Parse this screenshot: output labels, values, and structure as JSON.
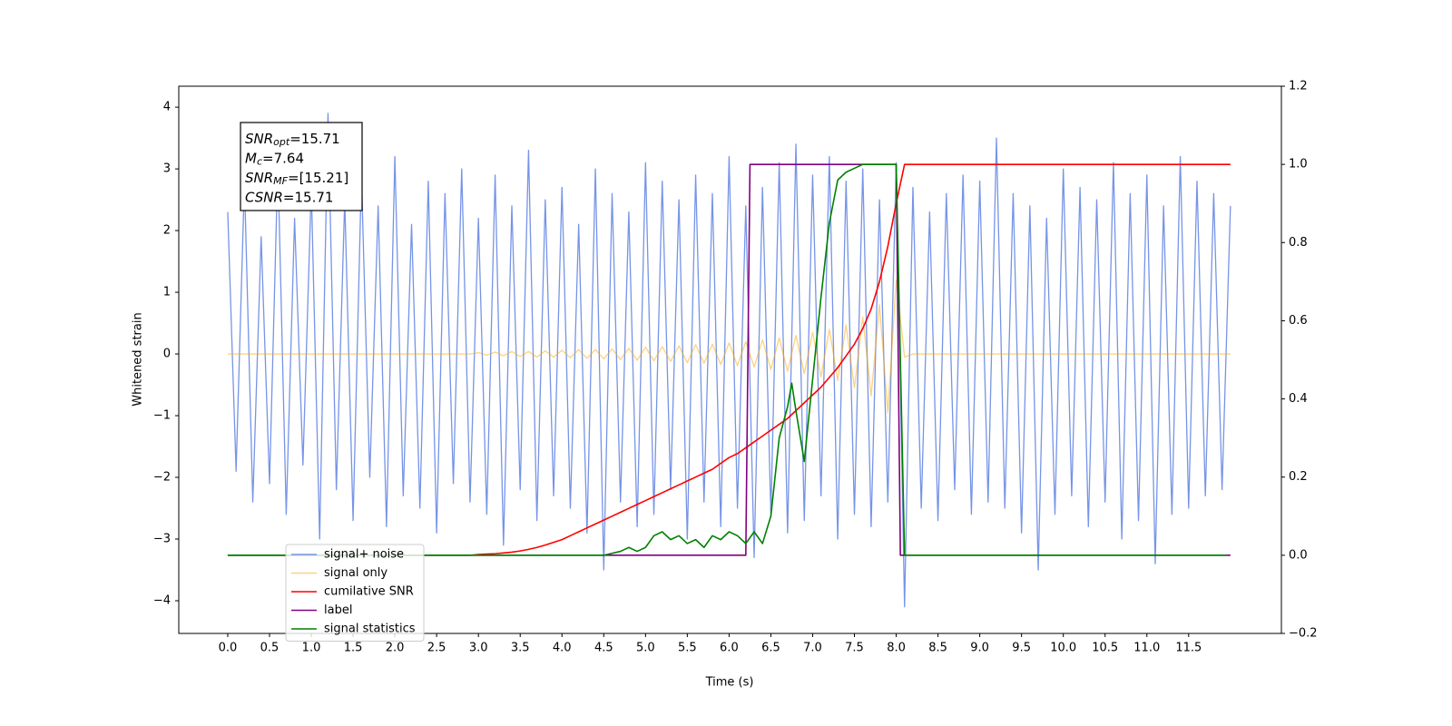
{
  "chart_data": {
    "type": "line",
    "xlabel": "Time (s)",
    "ylabel": "Whitened strain",
    "xlim": [
      -0.586,
      12.61
    ],
    "ylim": [
      -4.53,
      4.34
    ],
    "y2lim": [
      -0.2,
      1.2
    ],
    "xticks": [
      {
        "value": 0,
        "label": "0.0"
      },
      0.5,
      {
        "value": 1,
        "label": "1.0"
      },
      1.5,
      {
        "value": 2,
        "label": "2.0"
      },
      2.5,
      {
        "value": 3,
        "label": "3.0"
      },
      3.5,
      {
        "value": 4,
        "label": "4.0"
      },
      4.5,
      {
        "value": 5,
        "label": "5.0"
      },
      5.5,
      {
        "value": 6,
        "label": "6.0"
      },
      6.5,
      {
        "value": 7,
        "label": "7.0"
      },
      7.5,
      {
        "value": 8,
        "label": "8.0"
      },
      8.5,
      {
        "value": 9,
        "label": "9.0"
      },
      9.5,
      {
        "value": 10,
        "label": "10.0"
      },
      10.5,
      {
        "value": 11,
        "label": "11.0"
      },
      11.5
    ],
    "yticks": [
      {
        "value": -4,
        "label": "−4"
      },
      {
        "value": -3,
        "label": "−3"
      },
      {
        "value": -2,
        "label": "−2"
      },
      {
        "value": -1,
        "label": "−1"
      },
      0,
      1,
      2,
      3,
      4
    ],
    "y2ticks": [
      {
        "value": -0.2,
        "label": "−0.2"
      },
      {
        "value": 0,
        "label": "0.0"
      },
      0.2,
      0.4,
      0.6,
      0.8,
      {
        "value": 1,
        "label": "1.0"
      },
      1.2
    ],
    "legend": "lower left",
    "annotation": [
      {
        "symbol": "SNR",
        "subscript": "opt",
        "text": "=15.71"
      },
      {
        "symbol": "M",
        "subscript": "c",
        "text": "=7.64"
      },
      {
        "symbol": "SNR",
        "subscript": "MF",
        "text": "=[15.21]"
      },
      {
        "symbol": "CSNR",
        "text": "=15.71"
      }
    ],
    "x": [
      0,
      0.1,
      0.2,
      0.3,
      0.4,
      0.5,
      0.6,
      0.7,
      0.8,
      0.9,
      1,
      1.1,
      1.2,
      1.3,
      1.4,
      1.5,
      1.6,
      1.7,
      1.8,
      1.9,
      2,
      2.1,
      2.2,
      2.3,
      2.4,
      2.5,
      2.6,
      2.7,
      2.8,
      2.9,
      3,
      3.1,
      3.2,
      3.3,
      3.4,
      3.5,
      3.6,
      3.7,
      3.8,
      3.9,
      4,
      4.1,
      4.2,
      4.3,
      4.4,
      4.5,
      4.6,
      4.7,
      4.8,
      4.9,
      5,
      5.1,
      5.2,
      5.3,
      5.4,
      5.5,
      5.6,
      5.7,
      5.8,
      5.9,
      6,
      6.1,
      6.2,
      6.3,
      6.4,
      6.5,
      6.6,
      6.7,
      6.8,
      6.9,
      7,
      7.1,
      7.2,
      7.3,
      7.4,
      7.5,
      7.6,
      7.7,
      7.8,
      7.9,
      8,
      8.1,
      8.2,
      8.3,
      8.4,
      8.5,
      8.6,
      8.7,
      8.8,
      8.9,
      9,
      9.1,
      9.2,
      9.3,
      9.4,
      9.5,
      9.6,
      9.7,
      9.8,
      9.9,
      10,
      10.1,
      10.2,
      10.3,
      10.4,
      10.5,
      10.6,
      10.7,
      10.8,
      10.9,
      11,
      11.1,
      11.2,
      11.3,
      11.4,
      11.5,
      11.6,
      11.7,
      11.8,
      11.9,
      12
    ],
    "series": [
      {
        "name": "signal+ noise",
        "color": "#6f8ee6",
        "values": [
          2.3,
          -1.9,
          2.8,
          -2.4,
          1.9,
          -2.1,
          3.1,
          -2.6,
          2.2,
          -1.8,
          2.7,
          -3.0,
          3.9,
          -2.2,
          2.5,
          -2.7,
          2.9,
          -2.0,
          2.4,
          -2.8,
          3.2,
          -2.3,
          2.1,
          -2.5,
          2.8,
          -2.9,
          2.6,
          -2.1,
          3.0,
          -2.4,
          2.2,
          -2.6,
          2.9,
          -3.1,
          2.4,
          -2.2,
          3.3,
          -2.7,
          2.5,
          -2.3,
          2.7,
          -2.5,
          2.1,
          -2.9,
          3.0,
          -3.5,
          2.6,
          -2.4,
          2.3,
          -2.8,
          3.1,
          -2.6,
          2.8,
          -2.2,
          2.5,
          -3.0,
          2.9,
          -2.4,
          2.6,
          -2.8,
          3.2,
          -2.5,
          2.4,
          -3.3,
          2.7,
          -2.6,
          3.1,
          -2.9,
          3.4,
          -2.7,
          2.9,
          -2.3,
          3.2,
          -3.0,
          2.8,
          -2.6,
          3.0,
          -2.8,
          2.5,
          -2.4,
          3.1,
          -4.1,
          2.7,
          -2.5,
          2.3,
          -2.7,
          2.6,
          -2.2,
          2.9,
          -2.6,
          2.8,
          -2.4,
          3.5,
          -2.5,
          2.6,
          -2.9,
          2.4,
          -3.5,
          2.2,
          -2.6,
          3.0,
          -2.3,
          2.7,
          -2.8,
          2.5,
          -2.4,
          3.1,
          -3.0,
          2.6,
          -2.7,
          2.9,
          -3.4,
          2.4,
          -2.6,
          3.2,
          -2.5,
          2.8,
          -2.3,
          2.6,
          -2.2,
          2.4
        ]
      },
      {
        "name": "signal only",
        "color": "#ffa500",
        "values": [
          0,
          0,
          0,
          0,
          0,
          0,
          0,
          0,
          0,
          0,
          0,
          0,
          0,
          0,
          0,
          0,
          0,
          0,
          0,
          0,
          0,
          0,
          0,
          0,
          0,
          0,
          0,
          0,
          0,
          0,
          0.02,
          -0.02,
          0.03,
          -0.03,
          0.04,
          -0.04,
          0.04,
          -0.05,
          0.05,
          -0.05,
          0.06,
          -0.06,
          0.07,
          -0.07,
          0.07,
          -0.08,
          0.08,
          -0.09,
          0.09,
          -0.1,
          0.11,
          -0.11,
          0.12,
          -0.12,
          0.13,
          -0.14,
          0.15,
          -0.15,
          0.16,
          -0.17,
          0.18,
          -0.19,
          0.2,
          -0.21,
          0.23,
          -0.25,
          0.26,
          -0.28,
          0.3,
          -0.32,
          0.35,
          -0.37,
          0.4,
          -0.43,
          0.47,
          -0.55,
          0.6,
          -0.68,
          0.8,
          -0.95,
          1.2,
          -0.05,
          0,
          0,
          0,
          0,
          0,
          0,
          0,
          0,
          0,
          0,
          0,
          0,
          0,
          0,
          0,
          0,
          0,
          0,
          0,
          0,
          0,
          0,
          0,
          0,
          0,
          0,
          0,
          0,
          0,
          0,
          0,
          0,
          0,
          0,
          0,
          0,
          0,
          0,
          0
        ]
      },
      {
        "name": "cumilative SNR",
        "color": "#ff0000",
        "axis": "y2",
        "values": [
          0,
          0,
          0,
          0,
          0,
          0,
          0,
          0,
          0,
          0,
          0,
          0,
          0,
          0,
          0,
          0,
          0,
          0,
          0,
          0,
          0,
          0,
          0,
          0,
          0,
          0,
          0,
          0,
          0,
          0,
          0.002,
          0.003,
          0.004,
          0.006,
          0.008,
          0.011,
          0.015,
          0.02,
          0.026,
          0.033,
          0.04,
          0.05,
          0.06,
          0.07,
          0.08,
          0.09,
          0.1,
          0.11,
          0.12,
          0.13,
          0.14,
          0.15,
          0.16,
          0.17,
          0.18,
          0.19,
          0.2,
          0.21,
          0.22,
          0.235,
          0.25,
          0.26,
          0.275,
          0.29,
          0.305,
          0.32,
          0.335,
          0.35,
          0.37,
          0.39,
          0.41,
          0.43,
          0.455,
          0.48,
          0.51,
          0.54,
          0.58,
          0.63,
          0.7,
          0.79,
          0.9,
          1,
          1,
          1,
          1,
          1,
          1,
          1,
          1,
          1,
          1,
          1,
          1,
          1,
          1,
          1,
          1,
          1,
          1,
          1,
          1,
          1,
          1,
          1,
          1,
          1,
          1,
          1,
          1,
          1,
          1,
          1,
          1,
          1,
          1,
          1,
          1,
          1,
          1,
          1,
          1
        ]
      },
      {
        "name": "label",
        "color": "#800080",
        "axis": "y2",
        "x": [
          0,
          6.2,
          6.25,
          8.0,
          8.05,
          12.0
        ],
        "values": [
          0,
          0,
          1,
          1,
          0,
          0
        ]
      },
      {
        "name": "signal statistics",
        "color": "#008000",
        "axis": "y2",
        "x": [
          0,
          4.5,
          4.7,
          4.8,
          4.9,
          5.0,
          5.1,
          5.2,
          5.3,
          5.4,
          5.5,
          5.6,
          5.7,
          5.8,
          5.9,
          6.0,
          6.1,
          6.2,
          6.3,
          6.4,
          6.5,
          6.6,
          6.7,
          6.75,
          6.8,
          6.9,
          7.0,
          7.1,
          7.2,
          7.3,
          7.4,
          7.5,
          7.6,
          7.7,
          8.0,
          8.1,
          11.95
        ],
        "values": [
          0,
          0,
          0.01,
          0.02,
          0.01,
          0.02,
          0.05,
          0.06,
          0.04,
          0.05,
          0.03,
          0.04,
          0.02,
          0.05,
          0.04,
          0.06,
          0.05,
          0.03,
          0.06,
          0.03,
          0.1,
          0.3,
          0.38,
          0.44,
          0.37,
          0.24,
          0.45,
          0.66,
          0.85,
          0.96,
          0.98,
          0.99,
          1.0,
          1.0,
          1.0,
          0,
          0
        ]
      }
    ]
  }
}
